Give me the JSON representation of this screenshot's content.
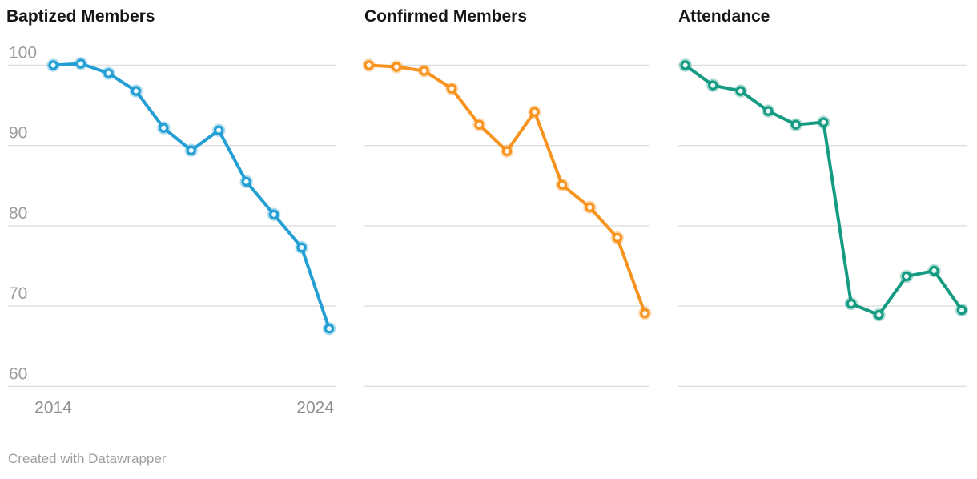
{
  "page": {
    "footer_text": "Created with Datawrapper"
  },
  "chart_data": {
    "type": "line",
    "x": [
      2014,
      2015,
      2016,
      2017,
      2018,
      2019,
      2020,
      2021,
      2022,
      2023,
      2024
    ],
    "x_axis_labels": [
      "2014",
      "2024"
    ],
    "y_ticks": [
      100,
      90,
      80,
      70,
      60
    ],
    "ylim": [
      58,
      103
    ],
    "grid": "horizontal-only",
    "legend": "none",
    "y_labels_shown_on": "first panel only",
    "x_labels_shown_on": "first panel only",
    "gridline_color": "#dedede",
    "charts": [
      {
        "title": "Baptized Members",
        "color": "#239fd4",
        "values": [
          100,
          100.2,
          99.0,
          96.8,
          92.2,
          89.4,
          91.9,
          85.5,
          81.4,
          77.3,
          67.2
        ]
      },
      {
        "title": "Confirmed Members",
        "color": "#f7931e",
        "values": [
          100,
          99.8,
          99.3,
          97.1,
          92.6,
          89.3,
          94.2,
          85.1,
          82.3,
          78.5,
          69.1
        ]
      },
      {
        "title": "Attendance",
        "color": "#149b82",
        "values": [
          100,
          97.5,
          96.8,
          94.3,
          92.6,
          92.9,
          70.3,
          68.9,
          73.7,
          74.4,
          69.5
        ]
      }
    ]
  }
}
